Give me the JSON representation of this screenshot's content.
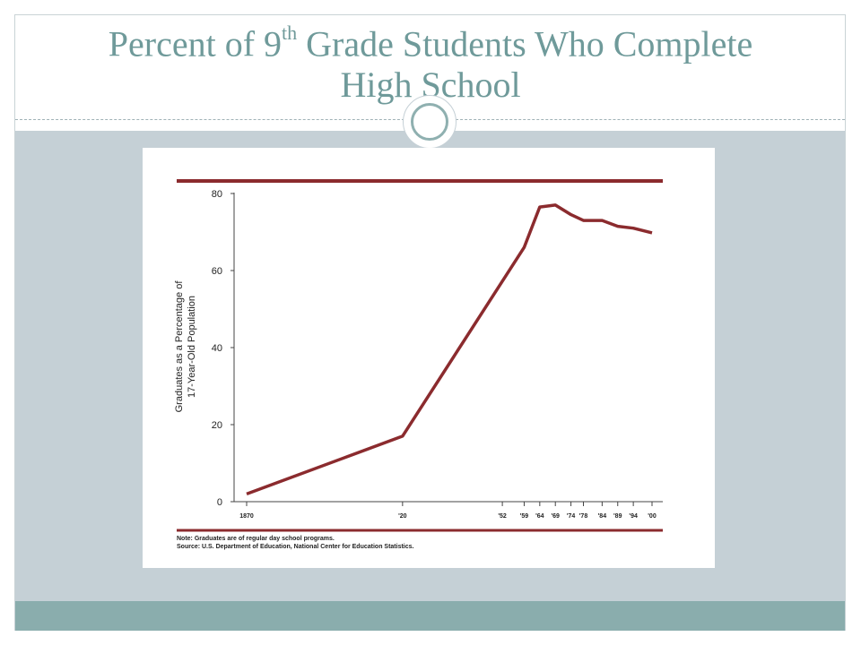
{
  "slide": {
    "title_prefix": "Percent of 9",
    "title_sup": "th",
    "title_suffix": " Grade Students Who Complete",
    "title_line2": "High School"
  },
  "colors": {
    "title": "#6f9a9a",
    "band": "#c5d0d6",
    "bottom_band": "#8aadad",
    "series": "#8b2b2e"
  },
  "chart_data": {
    "type": "line",
    "title": "",
    "xlabel": "",
    "ylabel_lines": [
      "Graduates as a Percentage of",
      "17-Year-Old Population"
    ],
    "ylim": [
      0,
      80
    ],
    "yticks": [
      0,
      20,
      40,
      60,
      80
    ],
    "grid": false,
    "xticks": [
      {
        "year": 1870,
        "label": "1870"
      },
      {
        "year": 1920,
        "label": "'20"
      },
      {
        "year": 1952,
        "label": "'52"
      },
      {
        "year": 1959,
        "label": "'59"
      },
      {
        "year": 1964,
        "label": "'64"
      },
      {
        "year": 1969,
        "label": "'69"
      },
      {
        "year": 1974,
        "label": "'74"
      },
      {
        "year": 1978,
        "label": "'78"
      },
      {
        "year": 1984,
        "label": "'84"
      },
      {
        "year": 1989,
        "label": "'89"
      },
      {
        "year": 1994,
        "label": "'94"
      },
      {
        "year": 2000,
        "label": "'00"
      }
    ],
    "series": [
      {
        "x": [
          1870,
          1920,
          1959,
          1964,
          1969,
          1974,
          1978,
          1984,
          1989,
          1994,
          2000
        ],
        "y": [
          2,
          17,
          66,
          76.5,
          77,
          74.5,
          73,
          73,
          71.5,
          71,
          69.8
        ]
      }
    ],
    "notes": [
      "Note: Graduates are of regular day school programs.",
      "Source: U.S. Department of Education, National Center for Education Statistics."
    ]
  }
}
